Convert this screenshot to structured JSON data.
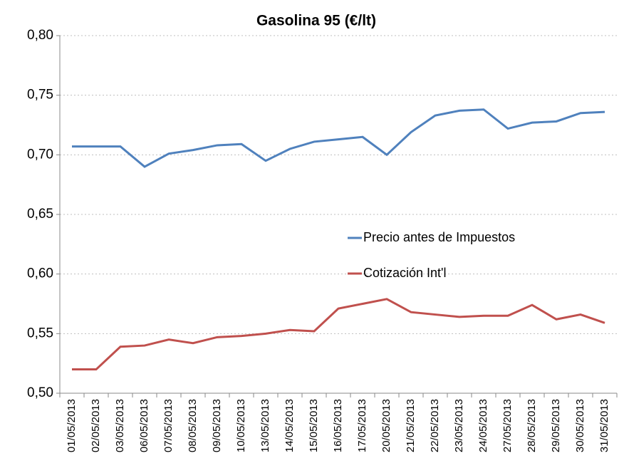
{
  "chart_data": {
    "type": "line",
    "title": "Gasolina 95 (€/lt)",
    "categories": [
      "01/05/2013",
      "02/05/2013",
      "03/05/2013",
      "06/05/2013",
      "07/05/2013",
      "08/05/2013",
      "09/05/2013",
      "10/05/2013",
      "13/05/2013",
      "14/05/2013",
      "15/05/2013",
      "16/05/2013",
      "17/05/2013",
      "20/05/2013",
      "21/05/2013",
      "22/05/2013",
      "23/05/2013",
      "24/05/2013",
      "27/05/2013",
      "28/05/2013",
      "29/05/2013",
      "30/05/2013",
      "31/05/2013"
    ],
    "series": [
      {
        "name": "Precio antes de Impuestos",
        "color": "#4f81bd",
        "values": [
          0.707,
          0.707,
          0.707,
          0.69,
          0.701,
          0.704,
          0.708,
          0.709,
          0.695,
          0.705,
          0.711,
          0.713,
          0.715,
          0.7,
          0.719,
          0.733,
          0.737,
          0.738,
          0.722,
          0.727,
          0.728,
          0.735,
          0.736
        ]
      },
      {
        "name": "Cotización Int'l",
        "color": "#c0504d",
        "values": [
          0.52,
          0.52,
          0.539,
          0.54,
          0.545,
          0.542,
          0.547,
          0.548,
          0.55,
          0.553,
          0.552,
          0.571,
          0.575,
          0.579,
          0.568,
          0.566,
          0.564,
          0.565,
          0.565,
          0.574,
          0.562,
          0.566,
          0.559
        ]
      }
    ],
    "ylim": [
      0.5,
      0.8
    ],
    "yticks": [
      {
        "value": 0.5,
        "label": "0,50"
      },
      {
        "value": 0.55,
        "label": "0,55"
      },
      {
        "value": 0.6,
        "label": "0,60"
      },
      {
        "value": 0.65,
        "label": "0,65"
      },
      {
        "value": 0.7,
        "label": "0,70"
      },
      {
        "value": 0.75,
        "label": "0,75"
      },
      {
        "value": 0.8,
        "label": "0,80"
      }
    ],
    "grid": true,
    "legend": "center"
  }
}
